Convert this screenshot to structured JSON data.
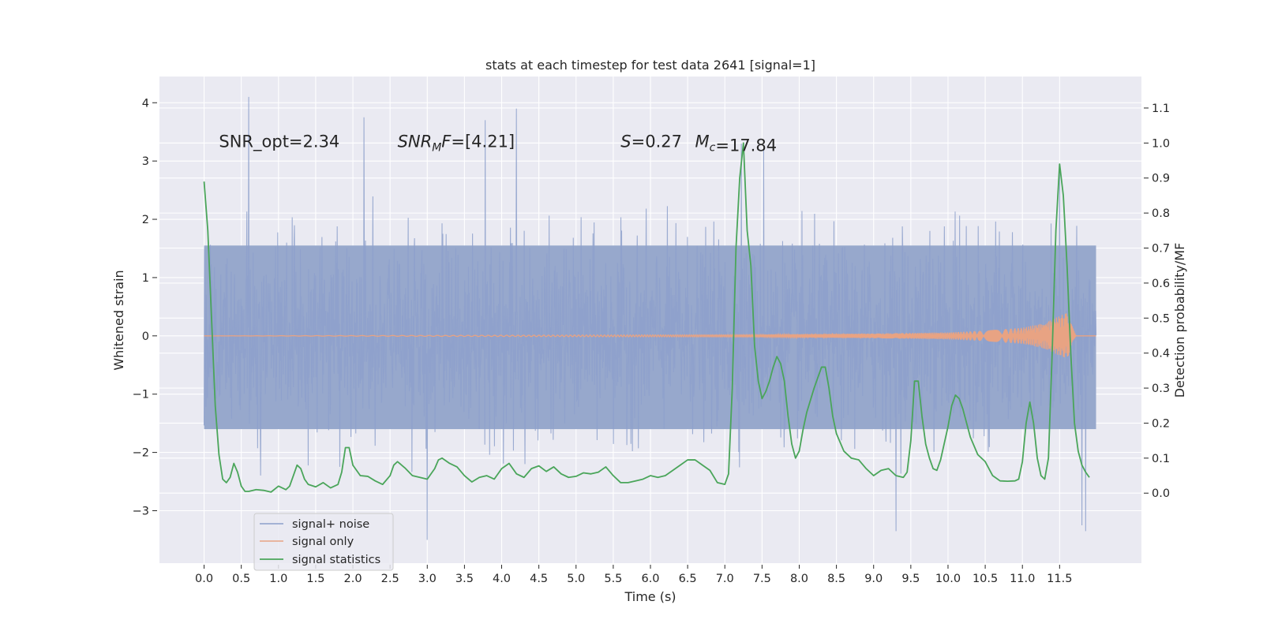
{
  "chart_data": {
    "type": "line",
    "title": "stats at each timestep for test data 2641 [signal=1]",
    "xlabel": "Time (s)",
    "ylabel_left": "Whitened strain",
    "ylabel_right": "Detection probability/MF",
    "xlim": [
      -0.6,
      12.6
    ],
    "ylim_left": [
      -3.9,
      4.45
    ],
    "ylim_right": [
      -0.2,
      1.19
    ],
    "x_ticks": [
      0.0,
      0.5,
      1.0,
      1.5,
      2.0,
      2.5,
      3.0,
      3.5,
      4.0,
      4.5,
      5.0,
      5.5,
      6.0,
      6.5,
      7.0,
      7.5,
      8.0,
      8.5,
      9.0,
      9.5,
      10.0,
      10.5,
      11.0,
      11.5
    ],
    "x_tick_labels": [
      "0.0",
      "0.5",
      "1.0",
      "1.5",
      "2.0",
      "2.5",
      "3.0",
      "3.5",
      "4.0",
      "4.5",
      "5.0",
      "5.5",
      "6.0",
      "6.5",
      "7.0",
      "7.5",
      "8.0",
      "8.5",
      "9.0",
      "9.5",
      "10.0",
      "10.5",
      "11.0",
      "11.5"
    ],
    "y_left_ticks": [
      4,
      3,
      2,
      1,
      0,
      -1,
      -2,
      -3
    ],
    "y_left_tick_labels": [
      "4",
      "3",
      "2",
      "1",
      "0",
      "−1",
      "−2",
      "−3"
    ],
    "y_right_ticks": [
      1.1,
      1.0,
      0.9,
      0.8,
      0.7,
      0.6,
      0.5,
      0.4,
      0.3,
      0.2,
      0.1,
      0.0
    ],
    "y_right_tick_labels": [
      "1.1",
      "1.0",
      "0.9",
      "0.8",
      "0.7",
      "0.6",
      "0.5",
      "0.4",
      "0.3",
      "0.2",
      "0.1",
      "0.0"
    ],
    "grid": true,
    "legend_position": "lower-left",
    "legend": [
      {
        "label": "signal+ noise",
        "color": "#8da0cb"
      },
      {
        "label": "signal only",
        "color": "#e8a383"
      },
      {
        "label": "signal statistics",
        "color": "#4aa55a"
      }
    ],
    "annotations": [
      {
        "text": "SNR_opt=2.34",
        "x": 0.2,
        "y": 3.35
      },
      {
        "text": "SNR_MF=[4.21]",
        "x": 2.6,
        "y": 3.35
      },
      {
        "text": "S=0.27",
        "x": 5.6,
        "y": 3.35
      },
      {
        "text": "M_c=17.84",
        "x": 6.6,
        "y": 3.35
      }
    ],
    "noise_series": {
      "name": "signal+ noise",
      "t_start": 0.0,
      "t_end": 11.99,
      "typical_range": [
        -1.6,
        1.55
      ],
      "peaks": [
        {
          "x": 0.6,
          "y": 4.1
        },
        {
          "x": 2.15,
          "y": 3.75
        },
        {
          "x": 3.78,
          "y": 3.7
        },
        {
          "x": 4.2,
          "y": 3.9
        },
        {
          "x": 7.22,
          "y": 3.3
        },
        {
          "x": 7.52,
          "y": 3.2
        },
        {
          "x": 11.5,
          "y": 2.9
        },
        {
          "x": 3.0,
          "y": -3.5
        },
        {
          "x": 9.3,
          "y": -3.35
        },
        {
          "x": 11.85,
          "y": -3.35
        },
        {
          "x": 11.8,
          "y": -3.25
        }
      ]
    },
    "signal_series": {
      "name": "signal only",
      "t_start": 0.0,
      "t_end": 11.99,
      "envelope": [
        [
          0.0,
          0.0
        ],
        [
          7.5,
          0.02
        ],
        [
          9.0,
          0.04
        ],
        [
          10.0,
          0.06
        ],
        [
          10.5,
          0.09
        ],
        [
          11.0,
          0.14
        ],
        [
          11.3,
          0.22
        ],
        [
          11.6,
          0.4
        ],
        [
          11.72,
          0.0
        ],
        [
          11.99,
          0.0
        ]
      ]
    },
    "stat_series": {
      "name": "signal statistics",
      "points": [
        [
          0.0,
          0.89
        ],
        [
          0.05,
          0.75
        ],
        [
          0.1,
          0.5
        ],
        [
          0.15,
          0.25
        ],
        [
          0.2,
          0.11
        ],
        [
          0.25,
          0.04
        ],
        [
          0.3,
          0.03
        ],
        [
          0.35,
          0.045
        ],
        [
          0.4,
          0.085
        ],
        [
          0.45,
          0.06
        ],
        [
          0.5,
          0.02
        ],
        [
          0.55,
          0.005
        ],
        [
          0.6,
          0.005
        ],
        [
          0.7,
          0.01
        ],
        [
          0.8,
          0.008
        ],
        [
          0.9,
          0.003
        ],
        [
          1.0,
          0.02
        ],
        [
          1.1,
          0.01
        ],
        [
          1.15,
          0.02
        ],
        [
          1.2,
          0.05
        ],
        [
          1.25,
          0.08
        ],
        [
          1.3,
          0.07
        ],
        [
          1.35,
          0.04
        ],
        [
          1.4,
          0.025
        ],
        [
          1.5,
          0.018
        ],
        [
          1.6,
          0.03
        ],
        [
          1.7,
          0.015
        ],
        [
          1.8,
          0.025
        ],
        [
          1.85,
          0.06
        ],
        [
          1.9,
          0.13
        ],
        [
          1.95,
          0.13
        ],
        [
          2.0,
          0.08
        ],
        [
          2.1,
          0.05
        ],
        [
          2.2,
          0.048
        ],
        [
          2.3,
          0.035
        ],
        [
          2.4,
          0.025
        ],
        [
          2.5,
          0.05
        ],
        [
          2.55,
          0.08
        ],
        [
          2.6,
          0.09
        ],
        [
          2.7,
          0.072
        ],
        [
          2.8,
          0.05
        ],
        [
          2.9,
          0.045
        ],
        [
          3.0,
          0.04
        ],
        [
          3.1,
          0.07
        ],
        [
          3.15,
          0.095
        ],
        [
          3.2,
          0.1
        ],
        [
          3.3,
          0.085
        ],
        [
          3.4,
          0.075
        ],
        [
          3.5,
          0.05
        ],
        [
          3.6,
          0.032
        ],
        [
          3.7,
          0.045
        ],
        [
          3.8,
          0.05
        ],
        [
          3.9,
          0.04
        ],
        [
          4.0,
          0.07
        ],
        [
          4.1,
          0.085
        ],
        [
          4.2,
          0.055
        ],
        [
          4.3,
          0.045
        ],
        [
          4.4,
          0.07
        ],
        [
          4.5,
          0.078
        ],
        [
          4.6,
          0.062
        ],
        [
          4.7,
          0.075
        ],
        [
          4.8,
          0.055
        ],
        [
          4.9,
          0.045
        ],
        [
          5.0,
          0.048
        ],
        [
          5.1,
          0.058
        ],
        [
          5.2,
          0.055
        ],
        [
          5.3,
          0.06
        ],
        [
          5.4,
          0.075
        ],
        [
          5.5,
          0.05
        ],
        [
          5.6,
          0.03
        ],
        [
          5.7,
          0.03
        ],
        [
          5.8,
          0.035
        ],
        [
          5.9,
          0.04
        ],
        [
          6.0,
          0.05
        ],
        [
          6.1,
          0.045
        ],
        [
          6.2,
          0.05
        ],
        [
          6.3,
          0.065
        ],
        [
          6.4,
          0.08
        ],
        [
          6.5,
          0.095
        ],
        [
          6.6,
          0.095
        ],
        [
          6.7,
          0.08
        ],
        [
          6.8,
          0.065
        ],
        [
          6.9,
          0.03
        ],
        [
          7.0,
          0.025
        ],
        [
          7.05,
          0.055
        ],
        [
          7.1,
          0.3
        ],
        [
          7.15,
          0.7
        ],
        [
          7.2,
          0.9
        ],
        [
          7.25,
          1.0
        ],
        [
          7.3,
          0.75
        ],
        [
          7.35,
          0.65
        ],
        [
          7.4,
          0.42
        ],
        [
          7.45,
          0.32
        ],
        [
          7.5,
          0.27
        ],
        [
          7.55,
          0.29
        ],
        [
          7.6,
          0.32
        ],
        [
          7.65,
          0.36
        ],
        [
          7.7,
          0.39
        ],
        [
          7.75,
          0.37
        ],
        [
          7.8,
          0.32
        ],
        [
          7.85,
          0.22
        ],
        [
          7.9,
          0.14
        ],
        [
          7.95,
          0.1
        ],
        [
          8.0,
          0.12
        ],
        [
          8.05,
          0.18
        ],
        [
          8.1,
          0.23
        ],
        [
          8.2,
          0.3
        ],
        [
          8.3,
          0.36
        ],
        [
          8.35,
          0.36
        ],
        [
          8.4,
          0.3
        ],
        [
          8.45,
          0.22
        ],
        [
          8.5,
          0.17
        ],
        [
          8.6,
          0.12
        ],
        [
          8.7,
          0.1
        ],
        [
          8.8,
          0.095
        ],
        [
          8.9,
          0.07
        ],
        [
          9.0,
          0.05
        ],
        [
          9.1,
          0.065
        ],
        [
          9.2,
          0.07
        ],
        [
          9.3,
          0.05
        ],
        [
          9.4,
          0.045
        ],
        [
          9.45,
          0.06
        ],
        [
          9.5,
          0.15
        ],
        [
          9.55,
          0.32
        ],
        [
          9.6,
          0.32
        ],
        [
          9.65,
          0.22
        ],
        [
          9.7,
          0.14
        ],
        [
          9.75,
          0.1
        ],
        [
          9.8,
          0.07
        ],
        [
          9.85,
          0.065
        ],
        [
          9.9,
          0.095
        ],
        [
          10.0,
          0.19
        ],
        [
          10.05,
          0.25
        ],
        [
          10.1,
          0.28
        ],
        [
          10.15,
          0.27
        ],
        [
          10.2,
          0.24
        ],
        [
          10.3,
          0.16
        ],
        [
          10.4,
          0.11
        ],
        [
          10.5,
          0.09
        ],
        [
          10.6,
          0.05
        ],
        [
          10.7,
          0.035
        ],
        [
          10.8,
          0.034
        ],
        [
          10.9,
          0.035
        ],
        [
          10.95,
          0.04
        ],
        [
          11.0,
          0.09
        ],
        [
          11.05,
          0.2
        ],
        [
          11.1,
          0.26
        ],
        [
          11.15,
          0.2
        ],
        [
          11.2,
          0.1
        ],
        [
          11.25,
          0.05
        ],
        [
          11.3,
          0.04
        ],
        [
          11.35,
          0.1
        ],
        [
          11.4,
          0.4
        ],
        [
          11.45,
          0.75
        ],
        [
          11.5,
          0.94
        ],
        [
          11.55,
          0.85
        ],
        [
          11.6,
          0.65
        ],
        [
          11.65,
          0.4
        ],
        [
          11.7,
          0.2
        ],
        [
          11.75,
          0.12
        ],
        [
          11.8,
          0.08
        ],
        [
          11.85,
          0.06
        ],
        [
          11.9,
          0.045
        ]
      ]
    }
  }
}
